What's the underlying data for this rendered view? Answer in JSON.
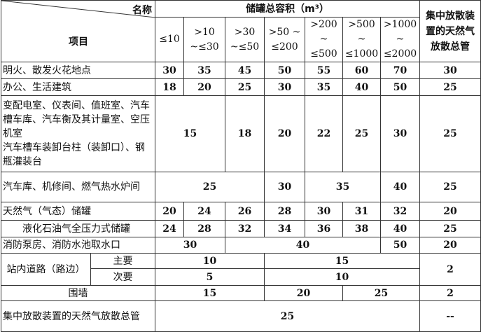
{
  "header": {
    "corner_top": "名称",
    "corner_bottom": "项目",
    "group_title": "储罐总容积（m³）",
    "last_col": "集中放散装置的天然气放散总管",
    "ranges": [
      "≤10",
      ">10 ~≤30",
      ">30 ~≤50",
      ">50 ~ ≤200",
      ">200 ~ ≤500",
      ">500 ~ ≤1000",
      ">1000 ~ ≤2000"
    ]
  },
  "rows": [
    {
      "item": "明火、散发火花地点",
      "cells": [
        {
          "t": "30"
        },
        {
          "t": "35"
        },
        {
          "t": "45"
        },
        {
          "t": "50"
        },
        {
          "t": "55"
        },
        {
          "t": "60"
        },
        {
          "t": "70"
        },
        {
          "t": "30"
        }
      ]
    },
    {
      "item": "办公、生活建筑",
      "cells": [
        {
          "t": "18"
        },
        {
          "t": "20"
        },
        {
          "t": "25"
        },
        {
          "t": "30"
        },
        {
          "t": "35"
        },
        {
          "t": "40"
        },
        {
          "t": "50"
        },
        {
          "t": "25"
        }
      ]
    },
    {
      "item": "变配电室、仪表间、值班室、汽车槽车库、汽车衡及其计量室、空压机室\n汽车槽车装卸台柱（装卸口）、钢瓶灌装台",
      "cells": [
        {
          "t": "15",
          "c": 2
        },
        {
          "t": "18"
        },
        {
          "t": "20"
        },
        {
          "t": "22"
        },
        {
          "t": "25"
        },
        {
          "t": "30"
        },
        {
          "t": "25"
        }
      ]
    },
    {
      "item": "汽车库、机修间、燃气热水炉间",
      "cells": [
        {
          "t": "25",
          "c": 3
        },
        {
          "t": "30"
        },
        {
          "t": "35",
          "c": 2
        },
        {
          "t": "40"
        },
        {
          "t": "25"
        }
      ]
    },
    {
      "item": "天然气（气态）储罐",
      "cells": [
        {
          "t": "20"
        },
        {
          "t": "24"
        },
        {
          "t": "26"
        },
        {
          "t": "28"
        },
        {
          "t": "30"
        },
        {
          "t": "31"
        },
        {
          "t": "32"
        },
        {
          "t": "20"
        }
      ]
    },
    {
      "item": "液化石油气全压力式储罐",
      "indent": true,
      "cells": [
        {
          "t": "24"
        },
        {
          "t": "28"
        },
        {
          "t": "32"
        },
        {
          "t": "34"
        },
        {
          "t": "36"
        },
        {
          "t": "38"
        },
        {
          "t": "40"
        },
        {
          "t": "25"
        }
      ]
    },
    {
      "item": "消防泵房、消防水池取水口",
      "cells": [
        {
          "t": "30",
          "c": 2
        },
        {
          "t": "40",
          "c": 4
        },
        {
          "t": "50"
        },
        {
          "t": "20"
        }
      ]
    },
    {
      "item": "站内道路（路边）",
      "sub": "主要",
      "cells": [
        {
          "t": "10",
          "c": 3
        },
        {
          "t": "15",
          "c": 4
        },
        {
          "t": "2",
          "r": 2
        }
      ]
    },
    {
      "sub": "次要",
      "cells": [
        {
          "t": "5",
          "c": 3
        },
        {
          "t": "10",
          "c": 4
        }
      ]
    },
    {
      "item": "围墙",
      "center": true,
      "cells": [
        {
          "t": "15",
          "c": 3
        },
        {
          "t": "20",
          "c": 2
        },
        {
          "t": "25",
          "c": 2
        },
        {
          "t": "2"
        }
      ]
    },
    {
      "item": "集中放散装置的天然气放散总管",
      "cells": [
        {
          "t": "25",
          "c": 7
        },
        {
          "t": "--"
        }
      ]
    }
  ]
}
